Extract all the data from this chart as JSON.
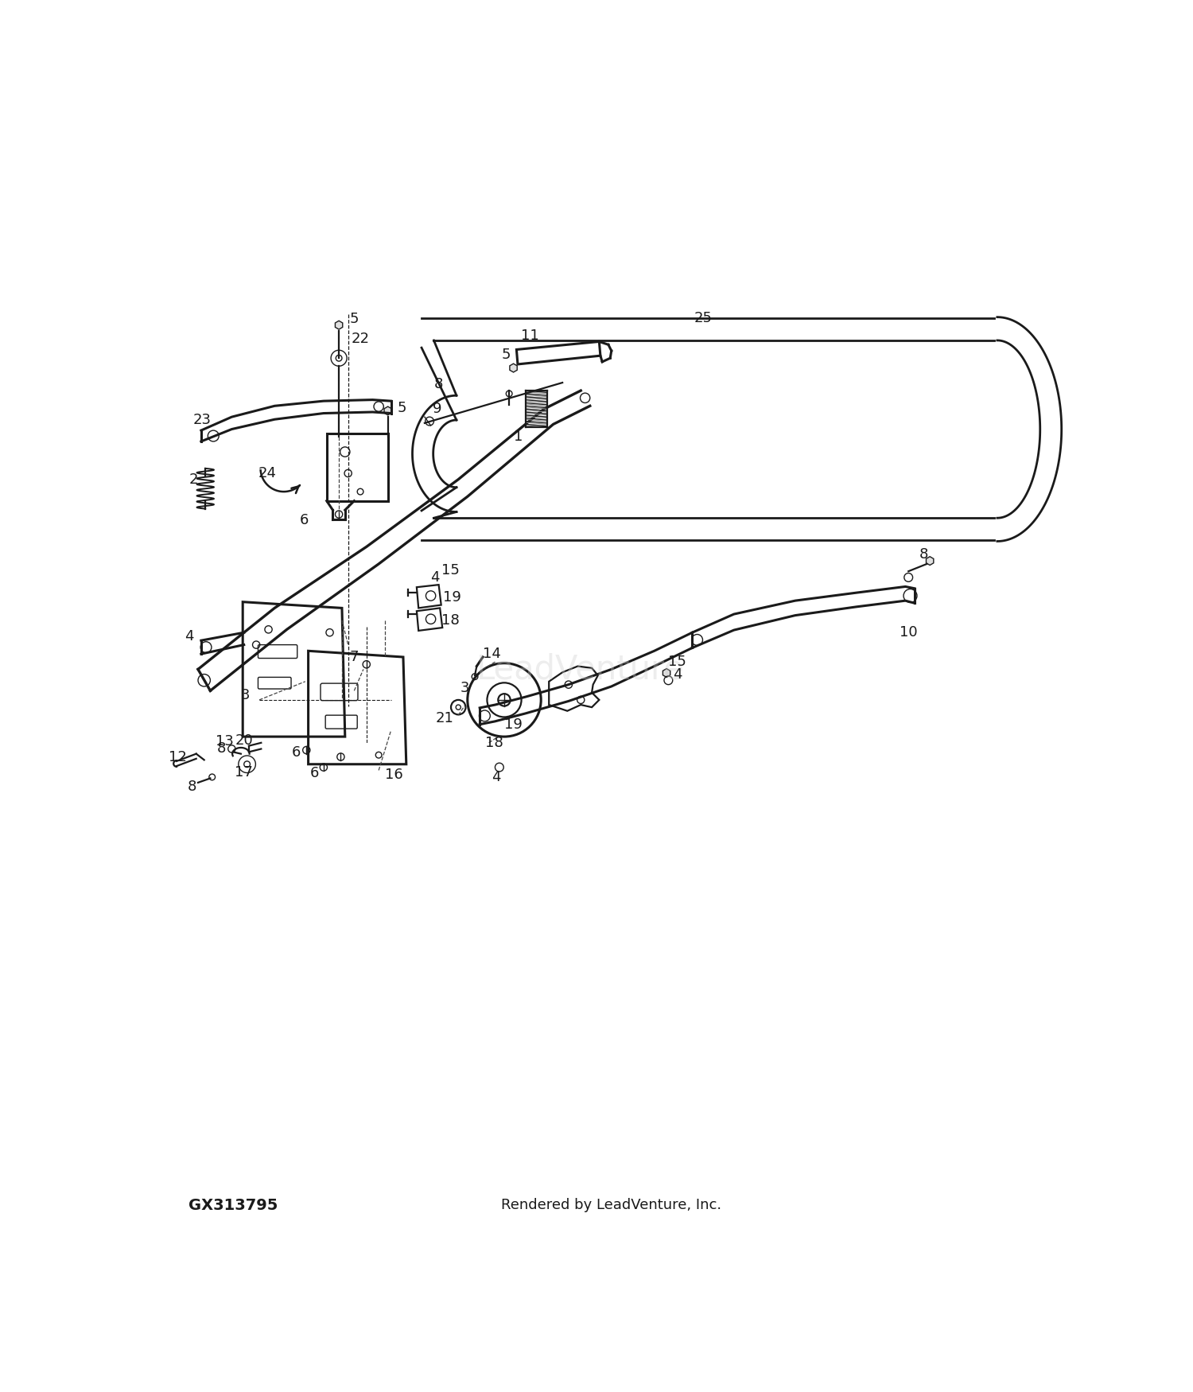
{
  "background_color": "#ffffff",
  "line_color": "#1a1a1a",
  "footer_left": "GX313795",
  "footer_center": "Rendered by LeadVenture, Inc.",
  "watermark": "LeadVenture",
  "lw": 1.6,
  "lw_thick": 2.2,
  "lw_thin": 1.0,
  "label_fs": 13
}
